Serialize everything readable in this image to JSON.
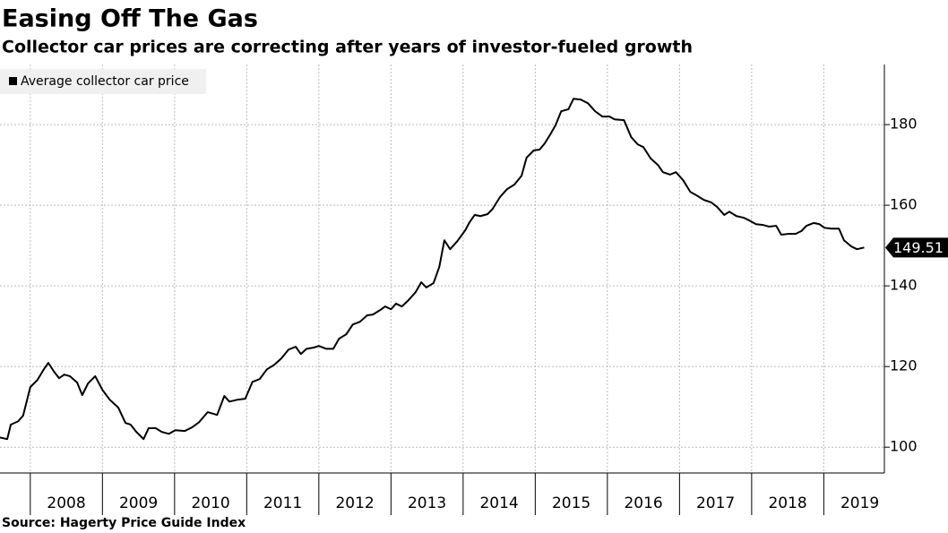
{
  "chart_data": {
    "type": "line",
    "title": "Easing Off The Gas",
    "subtitle": "Collector car prices are correcting after years of investor-fueled growth",
    "source": "Source: Hagerty Price Guide Index",
    "legend": "top-left",
    "grid": true,
    "xlim": [
      2007.58,
      2019.84
    ],
    "xticks": [
      2008,
      2009,
      2010,
      2011,
      2012,
      2013,
      2014,
      2015,
      2016,
      2017,
      2018,
      2019
    ],
    "ylim": [
      93.6,
      194.9
    ],
    "yticks": [
      100,
      120,
      140,
      160,
      180
    ],
    "x": [
      2007.58,
      2007.68,
      2007.73,
      2007.83,
      2007.9,
      2008.0,
      2008.1,
      2008.18,
      2008.25,
      2008.33,
      2008.4,
      2008.47,
      2008.55,
      2008.65,
      2008.72,
      2008.8,
      2008.9,
      2009.0,
      2009.1,
      2009.22,
      2009.32,
      2009.39,
      2009.47,
      2009.57,
      2009.64,
      2009.74,
      2009.82,
      2009.92,
      2010.01,
      2010.14,
      2010.24,
      2010.34,
      2010.46,
      2010.59,
      2010.69,
      2010.76,
      2010.88,
      2010.98,
      2011.08,
      2011.18,
      2011.28,
      2011.38,
      2011.48,
      2011.58,
      2011.68,
      2011.75,
      2011.83,
      2011.93,
      2012.0,
      2012.1,
      2012.2,
      2012.28,
      2012.38,
      2012.47,
      2012.57,
      2012.67,
      2012.75,
      2012.85,
      2012.92,
      2013.0,
      2013.07,
      2013.15,
      2013.24,
      2013.34,
      2013.42,
      2013.49,
      2013.59,
      2013.67,
      2013.74,
      2013.82,
      2013.92,
      2014.03,
      2014.09,
      2014.16,
      2014.24,
      2014.34,
      2014.41,
      2014.51,
      2014.61,
      2014.71,
      2014.81,
      2014.88,
      2014.98,
      2015.06,
      2015.13,
      2015.21,
      2015.28,
      2015.36,
      2015.46,
      2015.53,
      2015.63,
      2015.73,
      2015.83,
      2015.93,
      2016.03,
      2016.1,
      2016.23,
      2016.33,
      2016.42,
      2016.5,
      2016.6,
      2016.7,
      2016.77,
      2016.87,
      2016.95,
      2017.05,
      2017.15,
      2017.24,
      2017.34,
      2017.44,
      2017.52,
      2017.62,
      2017.69,
      2017.79,
      2017.89,
      2017.97,
      2018.06,
      2018.16,
      2018.24,
      2018.34,
      2018.41,
      2018.51,
      2018.61,
      2018.69,
      2018.76,
      2018.86,
      2018.94,
      2019.01,
      2019.11,
      2019.21,
      2019.28,
      2019.38,
      2019.46,
      2019.56
    ],
    "series": [
      {
        "name": "Average collector car price",
        "color": "#000000",
        "values": [
          102.4,
          102,
          105.6,
          106.4,
          107.8,
          114.9,
          116.7,
          119.1,
          120.9,
          118.7,
          117.1,
          118,
          117.6,
          116,
          112.9,
          115.8,
          117.6,
          114.2,
          111.8,
          109.8,
          106,
          105.6,
          103.8,
          102,
          104.7,
          104.7,
          103.8,
          103.3,
          104.2,
          104,
          104.9,
          106.2,
          108.7,
          108,
          112.7,
          111.3,
          111.8,
          112,
          116.2,
          116.9,
          119.3,
          120.4,
          122,
          124.2,
          124.9,
          123.1,
          124.4,
          124.7,
          125.1,
          124.4,
          124.4,
          126.9,
          128,
          130.4,
          131.1,
          132.7,
          132.9,
          134,
          134.9,
          134.2,
          135.6,
          134.9,
          136.4,
          138.4,
          140.9,
          139.6,
          140.7,
          144.7,
          151.3,
          149.1,
          151.1,
          153.8,
          155.8,
          157.6,
          157.3,
          157.8,
          159.1,
          162,
          164,
          165.1,
          167.3,
          171.8,
          173.6,
          173.8,
          175.3,
          177.6,
          179.8,
          183.3,
          183.8,
          186.4,
          186.2,
          185.3,
          183.3,
          182,
          182,
          181.3,
          181.1,
          176.9,
          175.1,
          174.4,
          171.6,
          170,
          168.2,
          167.6,
          168.2,
          166.2,
          163.3,
          162.4,
          161.3,
          160.7,
          159.6,
          157.6,
          158.4,
          157.3,
          156.9,
          156.2,
          155.3,
          155.1,
          154.7,
          154.9,
          152.7,
          152.9,
          152.9,
          153.6,
          154.9,
          155.6,
          155.3,
          154.4,
          154.2,
          154.2,
          151.3,
          149.8,
          149.1,
          149.51
        ]
      }
    ]
  }
}
